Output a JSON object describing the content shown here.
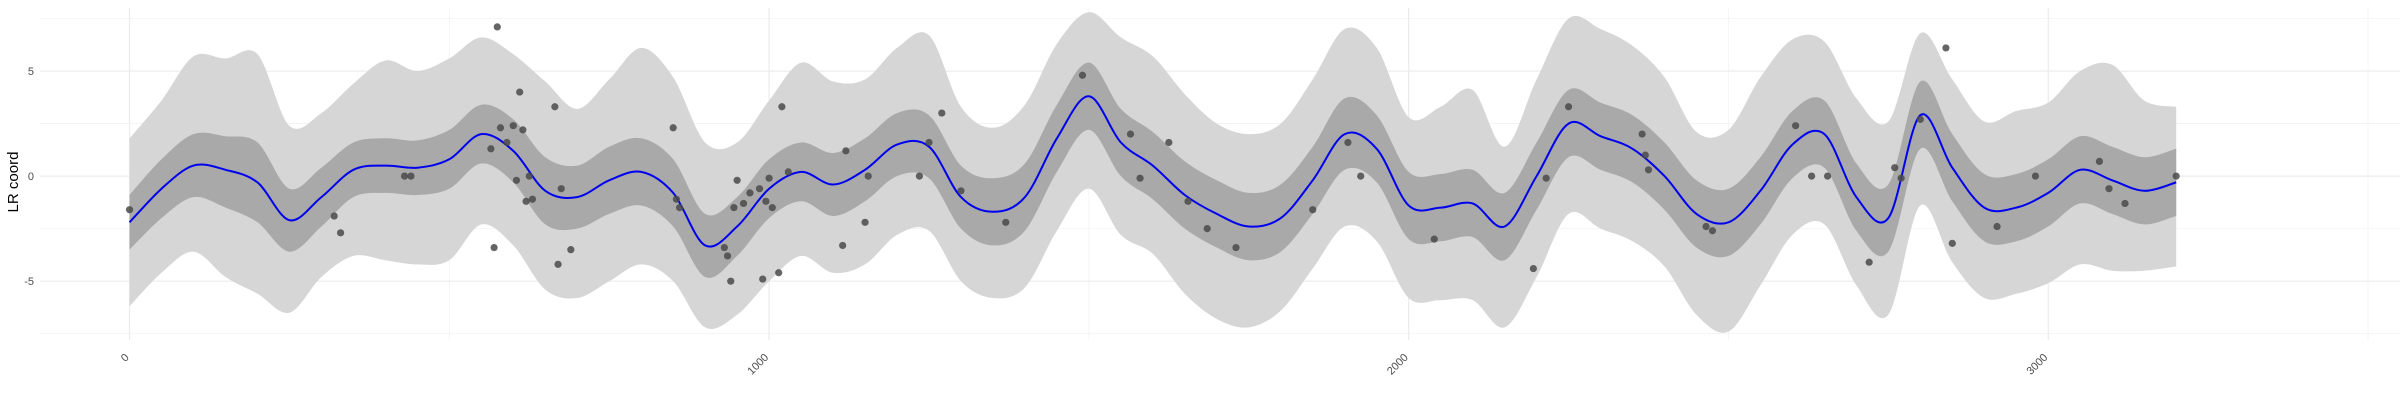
{
  "chart_data": {
    "type": "line",
    "title": "",
    "xlabel": "",
    "ylabel": "LR coord",
    "xlim": [
      -140,
      3550
    ],
    "ylim": [
      -7.8,
      8.0
    ],
    "x_ticks": [
      0,
      1000,
      2000,
      3000
    ],
    "x_tick_labels": [
      "0",
      "1000",
      "2000",
      "3000"
    ],
    "y_ticks": [
      -5,
      0,
      5
    ],
    "y_tick_labels": [
      "-5",
      "0",
      "5"
    ],
    "grid": true,
    "colors": {
      "line": "#0000ee",
      "inner_band": "#a9a9a9",
      "outer_band": "#d6d6d6",
      "points": "#4a4a4a",
      "grid": "#ebebeb"
    },
    "series": [
      {
        "kind": "fit_line_with_bands",
        "x": [
          0,
          50,
          100,
          150,
          200,
          250,
          300,
          350,
          400,
          450,
          500,
          550,
          600,
          650,
          700,
          750,
          800,
          850,
          900,
          950,
          1000,
          1050,
          1100,
          1150,
          1200,
          1250,
          1300,
          1350,
          1400,
          1450,
          1500,
          1550,
          1600,
          1650,
          1700,
          1750,
          1800,
          1850,
          1900,
          1950,
          2000,
          2050,
          2100,
          2150,
          2200,
          2250,
          2300,
          2350,
          2400,
          2450,
          2500,
          2550,
          2600,
          2650,
          2700,
          2750,
          2800,
          2850,
          2900,
          2950,
          3000,
          3050,
          3100,
          3150,
          3200
        ],
        "fit": [
          -2.2,
          -0.6,
          0.5,
          0.3,
          -0.3,
          -2.1,
          -1.0,
          0.3,
          0.5,
          0.4,
          0.8,
          2.0,
          1.2,
          -0.7,
          -1.0,
          -0.2,
          0.2,
          -0.8,
          -3.3,
          -2.4,
          -0.6,
          0.2,
          -0.4,
          0.3,
          1.5,
          1.4,
          -1.0,
          -1.7,
          -1.0,
          1.8,
          3.8,
          1.6,
          0.5,
          -0.9,
          -1.8,
          -2.4,
          -2.0,
          -0.2,
          2.0,
          1.3,
          -1.4,
          -1.5,
          -1.3,
          -2.4,
          0.0,
          2.5,
          1.9,
          1.3,
          0.0,
          -1.8,
          -2.2,
          -0.7,
          1.5,
          2.0,
          -1.0,
          -2.0,
          2.9,
          0.4,
          -1.5,
          -1.5,
          -0.8,
          0.3,
          -0.2,
          -0.7,
          -0.3
        ],
        "inner_lower": [
          -3.5,
          -2.0,
          -1.0,
          -1.5,
          -2.2,
          -3.6,
          -2.4,
          -1.0,
          -0.8,
          -0.9,
          -0.6,
          0.6,
          -0.3,
          -2.3,
          -2.5,
          -1.8,
          -1.4,
          -2.4,
          -4.8,
          -3.8,
          -2.0,
          -1.2,
          -1.9,
          -1.2,
          0.0,
          -0.1,
          -2.5,
          -3.3,
          -2.6,
          0.2,
          2.2,
          0.0,
          -1.1,
          -2.5,
          -3.4,
          -4.0,
          -3.6,
          -1.8,
          0.3,
          -0.3,
          -3.0,
          -3.1,
          -2.9,
          -4.0,
          -1.6,
          0.9,
          0.3,
          -0.3,
          -1.6,
          -3.4,
          -3.8,
          -2.3,
          -0.1,
          0.4,
          -2.6,
          -3.6,
          1.3,
          -1.2,
          -3.1,
          -3.1,
          -2.4,
          -1.3,
          -1.8,
          -2.3,
          -1.9
        ],
        "inner_upper": [
          -0.9,
          0.8,
          2.0,
          1.9,
          1.6,
          -0.6,
          0.4,
          1.6,
          1.8,
          1.7,
          2.2,
          3.4,
          2.7,
          0.9,
          0.5,
          1.4,
          1.8,
          0.8,
          -1.8,
          -1.0,
          0.8,
          1.6,
          1.1,
          1.8,
          3.0,
          2.9,
          0.5,
          -0.1,
          0.6,
          3.4,
          5.4,
          3.2,
          2.1,
          0.7,
          -0.2,
          -0.8,
          -0.4,
          1.4,
          3.7,
          2.9,
          0.2,
          0.1,
          0.3,
          -0.8,
          1.6,
          4.1,
          3.5,
          2.9,
          1.6,
          -0.2,
          -0.6,
          0.9,
          3.1,
          3.6,
          0.6,
          -0.4,
          4.5,
          2.0,
          0.1,
          0.1,
          0.8,
          1.9,
          1.4,
          0.9,
          1.3
        ],
        "outer_lower": [
          -6.2,
          -4.6,
          -3.6,
          -4.8,
          -5.6,
          -6.5,
          -4.8,
          -3.8,
          -4.0,
          -4.2,
          -4.0,
          -2.3,
          -3.3,
          -5.4,
          -5.8,
          -5.0,
          -4.2,
          -5.0,
          -7.2,
          -6.6,
          -5.0,
          -3.8,
          -4.6,
          -4.2,
          -2.8,
          -2.6,
          -5.0,
          -5.8,
          -5.3,
          -2.6,
          -0.6,
          -2.8,
          -3.7,
          -5.6,
          -6.8,
          -7.2,
          -6.4,
          -4.4,
          -2.4,
          -3.1,
          -5.8,
          -5.9,
          -5.9,
          -7.2,
          -4.8,
          -1.8,
          -2.5,
          -3.1,
          -4.3,
          -6.6,
          -7.4,
          -5.2,
          -2.8,
          -2.3,
          -5.2,
          -6.6,
          -1.4,
          -4.1,
          -5.8,
          -5.6,
          -5.1,
          -4.2,
          -4.5,
          -4.5,
          -4.3
        ],
        "outer_upper": [
          1.8,
          3.6,
          5.7,
          5.6,
          5.8,
          2.4,
          3.0,
          4.4,
          5.5,
          5.0,
          5.6,
          6.6,
          5.8,
          4.5,
          3.2,
          4.6,
          6.1,
          4.7,
          1.6,
          1.6,
          3.6,
          5.4,
          4.5,
          4.6,
          6.1,
          6.7,
          3.3,
          2.3,
          3.4,
          6.3,
          7.8,
          6.6,
          5.7,
          3.9,
          2.5,
          2.0,
          2.5,
          4.6,
          7.0,
          6.1,
          2.8,
          3.3,
          4.1,
          1.4,
          4.6,
          7.5,
          7.0,
          6.2,
          4.7,
          2.1,
          2.2,
          4.7,
          6.5,
          6.4,
          3.7,
          2.6,
          6.8,
          4.6,
          2.6,
          3.1,
          3.5,
          5.0,
          5.3,
          3.6,
          3.3
        ]
      },
      {
        "kind": "scatter",
        "points": [
          [
            0,
            -1.6
          ],
          [
            320,
            -1.9
          ],
          [
            330,
            -2.7
          ],
          [
            430,
            0.0
          ],
          [
            440,
            0.0
          ],
          [
            565,
            1.3
          ],
          [
            570,
            -3.4
          ],
          [
            575,
            7.1
          ],
          [
            580,
            2.3
          ],
          [
            590,
            1.6
          ],
          [
            600,
            2.4
          ],
          [
            605,
            -0.2
          ],
          [
            610,
            4.0
          ],
          [
            615,
            2.2
          ],
          [
            620,
            -1.2
          ],
          [
            625,
            0.0
          ],
          [
            630,
            -1.1
          ],
          [
            665,
            3.3
          ],
          [
            670,
            -4.2
          ],
          [
            675,
            -0.6
          ],
          [
            690,
            -3.5
          ],
          [
            850,
            2.3
          ],
          [
            855,
            -1.1
          ],
          [
            860,
            -1.5
          ],
          [
            930,
            -3.4
          ],
          [
            935,
            -3.8
          ],
          [
            940,
            -5.0
          ],
          [
            945,
            -1.5
          ],
          [
            950,
            -0.2
          ],
          [
            960,
            -1.3
          ],
          [
            970,
            -0.8
          ],
          [
            985,
            -0.6
          ],
          [
            990,
            -4.9
          ],
          [
            995,
            -1.2
          ],
          [
            1000,
            -0.1
          ],
          [
            1005,
            -1.5
          ],
          [
            1015,
            -4.6
          ],
          [
            1020,
            3.3
          ],
          [
            1030,
            0.2
          ],
          [
            1115,
            -3.3
          ],
          [
            1120,
            1.2
          ],
          [
            1150,
            -2.2
          ],
          [
            1155,
            0.0
          ],
          [
            1235,
            0.0
          ],
          [
            1250,
            1.6
          ],
          [
            1270,
            3.0
          ],
          [
            1300,
            -0.7
          ],
          [
            1370,
            -2.2
          ],
          [
            1490,
            4.8
          ],
          [
            1565,
            2.0
          ],
          [
            1580,
            -0.1
          ],
          [
            1625,
            1.6
          ],
          [
            1655,
            -1.2
          ],
          [
            1685,
            -2.5
          ],
          [
            1730,
            -3.4
          ],
          [
            1850,
            -1.6
          ],
          [
            1905,
            1.6
          ],
          [
            1925,
            0.0
          ],
          [
            2040,
            -3.0
          ],
          [
            2195,
            -4.4
          ],
          [
            2215,
            -0.1
          ],
          [
            2250,
            3.3
          ],
          [
            2365,
            2.0
          ],
          [
            2370,
            1.0
          ],
          [
            2375,
            0.3
          ],
          [
            2465,
            -2.4
          ],
          [
            2475,
            -2.6
          ],
          [
            2605,
            2.4
          ],
          [
            2630,
            0.0
          ],
          [
            2655,
            0.0
          ],
          [
            2720,
            -4.1
          ],
          [
            2760,
            0.4
          ],
          [
            2770,
            -0.1
          ],
          [
            2800,
            2.7
          ],
          [
            2840,
            6.1
          ],
          [
            2850,
            -3.2
          ],
          [
            2920,
            -2.4
          ],
          [
            2980,
            0.0
          ],
          [
            3080,
            0.7
          ],
          [
            3095,
            -0.6
          ],
          [
            3120,
            -1.3
          ],
          [
            3200,
            0.0
          ]
        ]
      }
    ]
  }
}
